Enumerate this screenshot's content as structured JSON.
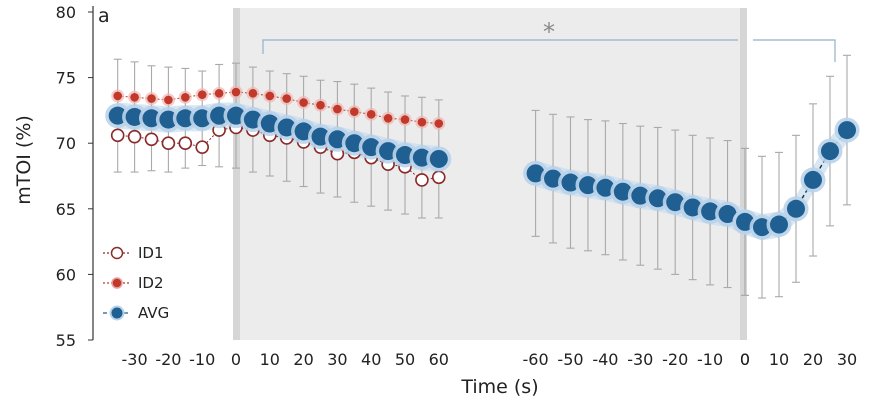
{
  "chart_data": {
    "type": "scatter",
    "panel_label": "a",
    "xlabel": "Time (s)",
    "ylabel": "mTOI (%)",
    "ylim": [
      55,
      80
    ],
    "yticks": [
      55,
      60,
      65,
      70,
      75,
      80
    ],
    "grid": false,
    "legend_position": "bottom-left",
    "significance_marker": "*",
    "segments": [
      {
        "id": "seg1",
        "x": [
          -35,
          -30,
          -25,
          -20,
          -15,
          -10,
          -5,
          0,
          5,
          10,
          15,
          20,
          25,
          30,
          35,
          40,
          45,
          50,
          55,
          60
        ]
      },
      {
        "id": "seg2",
        "x": [
          -60,
          -55,
          -50,
          -45,
          -40,
          -35,
          -30,
          -25,
          -20,
          -15,
          -10,
          -5,
          0
        ]
      },
      {
        "id": "seg3",
        "x": [
          0,
          5,
          10,
          15,
          20,
          25,
          30
        ]
      }
    ],
    "tick_labels": {
      "seg1": [
        -30,
        -20,
        -10,
        0,
        10,
        20,
        30,
        40,
        50,
        60
      ],
      "seg2": [
        -60,
        -50,
        -40,
        -30,
        -20,
        -10,
        0
      ],
      "seg3": [
        0,
        10,
        20,
        30
      ]
    },
    "series": [
      {
        "name": "ID1",
        "style": "open",
        "color": "#8b2a2a",
        "segments": {
          "seg1": [
            70.6,
            70.5,
            70.3,
            70.0,
            70.0,
            69.7,
            71.0,
            71.2,
            71.0,
            70.6,
            70.4,
            70.1,
            69.7,
            69.2,
            69.3,
            68.9,
            68.4,
            68.2,
            67.2,
            67.4
          ]
        }
      },
      {
        "name": "ID2",
        "style": "filled-small",
        "color": "#c0392b",
        "segments": {
          "seg1": [
            73.6,
            73.5,
            73.4,
            73.3,
            73.5,
            73.7,
            73.8,
            73.9,
            73.8,
            73.6,
            73.4,
            73.1,
            72.9,
            72.6,
            72.4,
            72.2,
            71.9,
            71.8,
            71.6,
            71.5
          ]
        }
      },
      {
        "name": "AVG",
        "style": "filled-large",
        "color": "#1f5f91",
        "segments": {
          "seg1": [
            72.1,
            72.0,
            71.9,
            71.8,
            71.9,
            71.9,
            72.1,
            72.1,
            71.8,
            71.5,
            71.2,
            70.9,
            70.5,
            70.3,
            70.0,
            69.7,
            69.4,
            69.1,
            68.9,
            68.8
          ],
          "seg2": [
            67.7,
            67.3,
            67.0,
            66.8,
            66.6,
            66.3,
            66.0,
            65.8,
            65.5,
            65.1,
            64.8,
            64.6,
            64.0
          ],
          "seg3": [
            64.0,
            63.6,
            63.8,
            65.0,
            67.2,
            69.4,
            71.0
          ]
        },
        "error": {
          "seg1": [
            4.3,
            4.2,
            4.0,
            4.0,
            3.8,
            3.6,
            3.9,
            4.0,
            4.0,
            4.0,
            4.1,
            4.2,
            4.3,
            4.4,
            4.5,
            4.5,
            4.5,
            4.5,
            4.6,
            4.5
          ],
          "seg2": [
            4.8,
            4.9,
            5.0,
            5.0,
            5.1,
            5.2,
            5.3,
            5.4,
            5.5,
            5.5,
            5.6,
            5.6,
            5.6
          ],
          "seg3": [
            5.6,
            5.4,
            5.5,
            5.6,
            5.8,
            5.7,
            5.7
          ]
        }
      }
    ]
  },
  "colors": {
    "avg_fill": "#1f5f91",
    "avg_ring": "#b9d3ea",
    "id2": "#c0392b",
    "id1": "#8b2a2a",
    "error_bar": "#a9a9a9",
    "shade_band": "#c9dff0",
    "gray_region": "#ececec",
    "bracket": "#8fb2cf"
  }
}
